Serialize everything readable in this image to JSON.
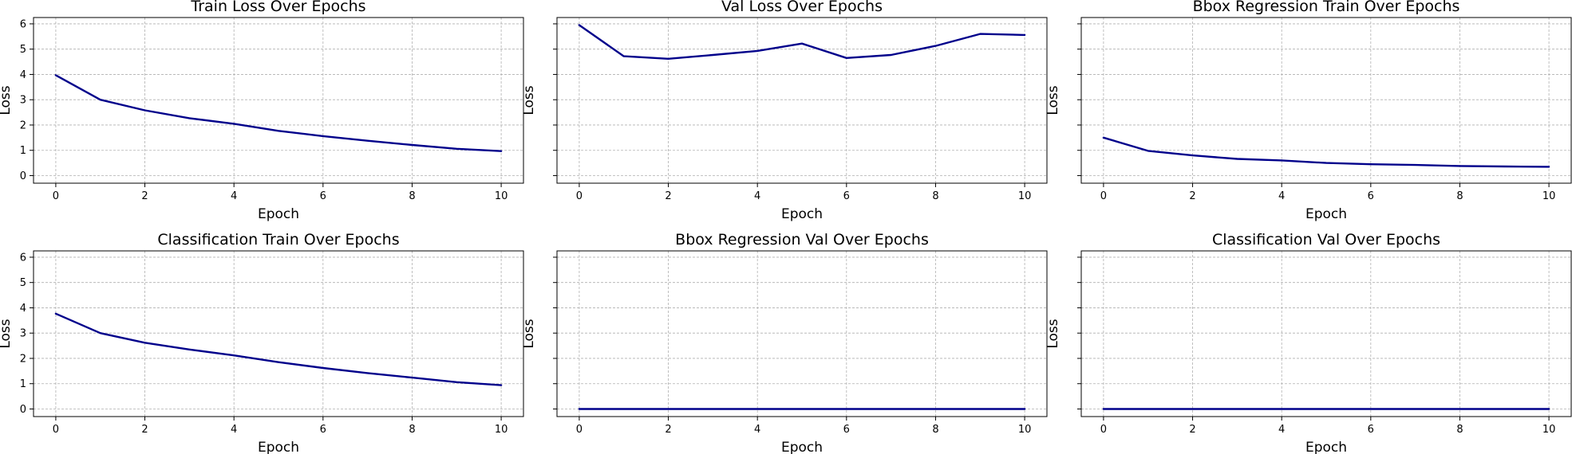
{
  "figure": {
    "line_color": "#00008b"
  },
  "chart_data": [
    {
      "type": "line",
      "title": "Train Loss Over Epochs",
      "xlabel": "Epoch",
      "ylabel": "Loss",
      "x": [
        0,
        1,
        2,
        3,
        4,
        5,
        6,
        7,
        8,
        9,
        10
      ],
      "values": [
        3.97,
        3.0,
        2.58,
        2.27,
        2.05,
        1.77,
        1.56,
        1.38,
        1.21,
        1.06,
        0.97
      ],
      "xticks": [
        0,
        2,
        4,
        6,
        8,
        10
      ],
      "yticks": [
        0,
        1,
        2,
        3,
        4,
        5,
        6
      ],
      "xlim": [
        -0.5,
        10.5
      ],
      "ylim": [
        -0.3,
        6.25
      ],
      "show_ytick_labels": true,
      "grid": true
    },
    {
      "type": "line",
      "title": "Val Loss Over Epochs",
      "xlabel": "Epoch",
      "ylabel": "Loss",
      "x": [
        0,
        1,
        2,
        3,
        4,
        5,
        6,
        7,
        8,
        9,
        10
      ],
      "values": [
        5.95,
        4.72,
        4.62,
        4.77,
        4.93,
        5.22,
        4.65,
        4.77,
        5.13,
        5.6,
        5.56
      ],
      "xticks": [
        0,
        2,
        4,
        6,
        8,
        10
      ],
      "yticks": [
        0,
        1,
        2,
        3,
        4,
        5,
        6
      ],
      "xlim": [
        -0.5,
        10.5
      ],
      "ylim": [
        -0.3,
        6.25
      ],
      "show_ytick_labels": false,
      "grid": true
    },
    {
      "type": "line",
      "title": "Bbox Regression Train Over Epochs",
      "xlabel": "Epoch",
      "ylabel": "Loss",
      "x": [
        0,
        1,
        2,
        3,
        4,
        5,
        6,
        7,
        8,
        9,
        10
      ],
      "values": [
        1.5,
        0.98,
        0.8,
        0.66,
        0.6,
        0.5,
        0.45,
        0.42,
        0.38,
        0.36,
        0.35
      ],
      "xticks": [
        0,
        2,
        4,
        6,
        8,
        10
      ],
      "yticks": [
        0,
        1,
        2,
        3,
        4,
        5,
        6
      ],
      "xlim": [
        -0.5,
        10.5
      ],
      "ylim": [
        -0.3,
        6.25
      ],
      "show_ytick_labels": false,
      "grid": true
    },
    {
      "type": "line",
      "title": "Classification Train Over Epochs",
      "xlabel": "Epoch",
      "ylabel": "Loss",
      "x": [
        0,
        1,
        2,
        3,
        4,
        5,
        6,
        7,
        8,
        9,
        10
      ],
      "values": [
        3.77,
        3.0,
        2.62,
        2.35,
        2.12,
        1.85,
        1.62,
        1.42,
        1.24,
        1.06,
        0.94
      ],
      "xticks": [
        0,
        2,
        4,
        6,
        8,
        10
      ],
      "yticks": [
        0,
        1,
        2,
        3,
        4,
        5,
        6
      ],
      "xlim": [
        -0.5,
        10.5
      ],
      "ylim": [
        -0.3,
        6.25
      ],
      "show_ytick_labels": true,
      "grid": true
    },
    {
      "type": "line",
      "title": "Bbox Regression Val Over Epochs",
      "xlabel": "Epoch",
      "ylabel": "Loss",
      "x": [
        0,
        1,
        2,
        3,
        4,
        5,
        6,
        7,
        8,
        9,
        10
      ],
      "values": [
        0,
        0,
        0,
        0,
        0,
        0,
        0,
        0,
        0,
        0,
        0
      ],
      "xticks": [
        0,
        2,
        4,
        6,
        8,
        10
      ],
      "yticks": [
        0,
        1,
        2,
        3,
        4,
        5,
        6
      ],
      "xlim": [
        -0.5,
        10.5
      ],
      "ylim": [
        -0.3,
        6.25
      ],
      "show_ytick_labels": false,
      "grid": true
    },
    {
      "type": "line",
      "title": "Classification Val Over Epochs",
      "xlabel": "Epoch",
      "ylabel": "Loss",
      "x": [
        0,
        1,
        2,
        3,
        4,
        5,
        6,
        7,
        8,
        9,
        10
      ],
      "values": [
        0,
        0,
        0,
        0,
        0,
        0,
        0,
        0,
        0,
        0,
        0
      ],
      "xticks": [
        0,
        2,
        4,
        6,
        8,
        10
      ],
      "yticks": [
        0,
        1,
        2,
        3,
        4,
        5,
        6
      ],
      "xlim": [
        -0.5,
        10.5
      ],
      "ylim": [
        -0.3,
        6.25
      ],
      "show_ytick_labels": false,
      "grid": true
    }
  ]
}
